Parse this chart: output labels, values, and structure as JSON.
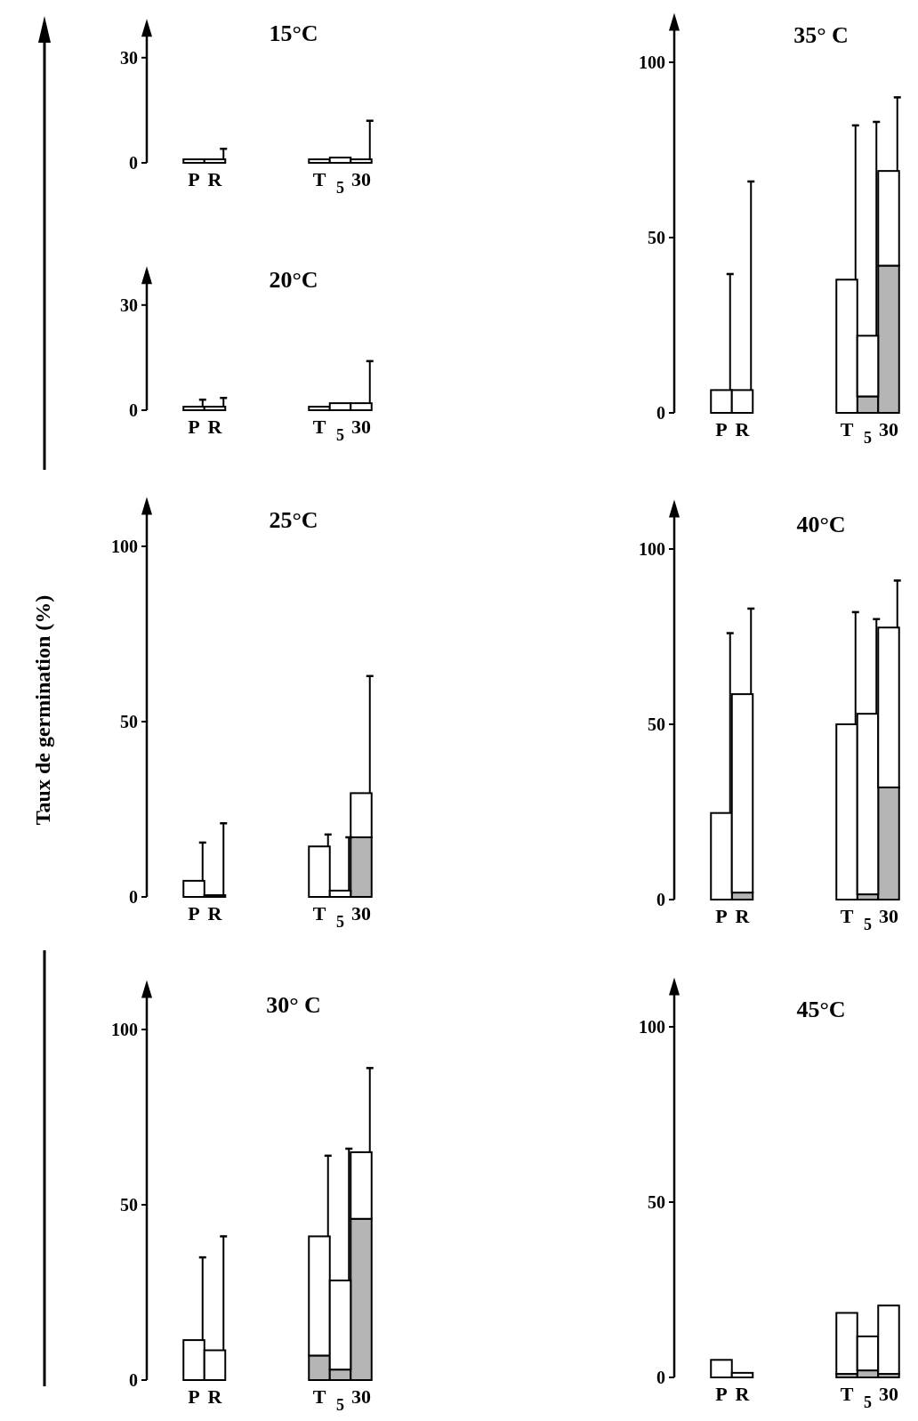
{
  "chart_data": [
    {
      "type": "bar",
      "title": "15°C",
      "stacked": true,
      "categories": [
        "P",
        "R",
        null,
        null,
        null,
        null,
        "T",
        "5",
        "30"
      ],
      "ylim": [
        0,
        37
      ],
      "yticks": [
        0,
        30
      ],
      "series": [
        {
          "color": "#b5b5b5",
          "values": [
            0,
            0,
            null,
            null,
            null,
            null,
            0,
            0,
            0
          ]
        },
        {
          "color": "#ffffff",
          "values": [
            1,
            1,
            null,
            null,
            null,
            null,
            1,
            1.5,
            1
          ],
          "errors": [
            null,
            [
              1,
              4
            ],
            null,
            null,
            null,
            null,
            null,
            null,
            [
              1,
              12
            ]
          ]
        }
      ]
    },
    {
      "type": "bar",
      "title": "20°C",
      "stacked": true,
      "categories": [
        "P",
        "R",
        null,
        null,
        null,
        null,
        "T",
        "5",
        "30"
      ],
      "ylim": [
        0,
        37
      ],
      "yticks": [
        0,
        30
      ],
      "series": [
        {
          "color": "#b5b5b5",
          "values": [
            0,
            0,
            null,
            null,
            null,
            null,
            0,
            0,
            0
          ]
        },
        {
          "color": "#ffffff",
          "values": [
            1,
            1,
            null,
            null,
            null,
            null,
            1,
            2,
            2
          ],
          "errors": [
            [
              1,
              3
            ],
            [
              1,
              3.5
            ],
            null,
            null,
            null,
            null,
            null,
            null,
            [
              2,
              14
            ]
          ]
        }
      ]
    },
    {
      "type": "bar",
      "title": "25°C",
      "ylabel": "Taux de germination (%)",
      "stacked": true,
      "categories": [
        "P",
        "R",
        null,
        null,
        null,
        null,
        "T",
        "5",
        "30"
      ],
      "ylim": [
        0,
        110
      ],
      "yticks": [
        0,
        50,
        100
      ],
      "series": [
        {
          "color": "#b5b5b5",
          "values": [
            0,
            0,
            null,
            null,
            null,
            null,
            0,
            0,
            17
          ]
        },
        {
          "color": "#ffffff",
          "values": [
            4.6,
            0.5,
            null,
            null,
            null,
            null,
            14.4,
            1.8,
            12.6
          ],
          "errors": [
            [
              4.6,
              15.5
            ],
            [
              0.5,
              21
            ],
            null,
            null,
            null,
            null,
            [
              14.4,
              17.8
            ],
            [
              1.8,
              17
            ],
            [
              29.6,
              63
            ]
          ]
        }
      ]
    },
    {
      "type": "bar",
      "title": "30° C",
      "stacked": true,
      "categories": [
        "P",
        "R",
        null,
        null,
        null,
        null,
        "T",
        "5",
        "30"
      ],
      "ylim": [
        0,
        110
      ],
      "yticks": [
        0,
        50,
        100
      ],
      "series": [
        {
          "color": "#b5b5b5",
          "values": [
            0,
            0,
            null,
            null,
            null,
            null,
            7,
            3,
            46
          ]
        },
        {
          "color": "#ffffff",
          "values": [
            11.4,
            8.5,
            null,
            null,
            null,
            null,
            34,
            25.4,
            19
          ],
          "errors": [
            [
              11.4,
              35
            ],
            [
              8.5,
              41
            ],
            null,
            null,
            null,
            null,
            [
              41,
              64
            ],
            [
              28.4,
              66
            ],
            [
              65,
              89
            ]
          ]
        }
      ]
    },
    {
      "type": "bar",
      "title": "35° C",
      "stacked": true,
      "categories": [
        "P",
        "R",
        null,
        null,
        null,
        null,
        "T",
        "5",
        "30"
      ],
      "ylim": [
        0,
        110
      ],
      "yticks": [
        0,
        50,
        100
      ],
      "series": [
        {
          "color": "#b5b5b5",
          "values": [
            0,
            0,
            null,
            null,
            null,
            null,
            0,
            4.7,
            42
          ]
        },
        {
          "color": "#ffffff",
          "values": [
            6.5,
            6.5,
            null,
            null,
            null,
            null,
            38,
            17.3,
            27
          ],
          "errors": [
            [
              6.5,
              39.6
            ],
            [
              6.5,
              66
            ],
            null,
            null,
            null,
            null,
            [
              38,
              82
            ],
            [
              22,
              83
            ],
            [
              69,
              90
            ]
          ]
        }
      ]
    },
    {
      "type": "bar",
      "title": "40°C",
      "stacked": true,
      "categories": [
        "P",
        "R",
        null,
        null,
        null,
        null,
        "T",
        "5",
        "30"
      ],
      "ylim": [
        0,
        110
      ],
      "yticks": [
        0,
        50,
        100
      ],
      "series": [
        {
          "color": "#b5b5b5",
          "values": [
            0,
            2,
            null,
            null,
            null,
            null,
            0,
            1.5,
            32
          ]
        },
        {
          "color": "#ffffff",
          "values": [
            24.7,
            56.6,
            null,
            null,
            null,
            null,
            50,
            51.5,
            45.6
          ],
          "errors": [
            [
              24.7,
              76
            ],
            [
              58.6,
              83
            ],
            null,
            null,
            null,
            null,
            [
              50,
              82
            ],
            [
              53,
              80
            ],
            [
              77.6,
              91
            ]
          ]
        }
      ]
    },
    {
      "type": "bar",
      "title": "45°C",
      "stacked": true,
      "categories": [
        "P",
        "R",
        null,
        null,
        null,
        null,
        "T",
        "5",
        "30"
      ],
      "ylim": [
        0,
        110
      ],
      "yticks": [
        0,
        50,
        100
      ],
      "series": [
        {
          "color": "#b5b5b5",
          "values": [
            0,
            0,
            null,
            null,
            null,
            null,
            1,
            2,
            1
          ]
        },
        {
          "color": "#ffffff",
          "values": [
            5,
            1.3,
            null,
            null,
            null,
            null,
            17.4,
            9.7,
            19.5
          ]
        }
      ]
    }
  ]
}
